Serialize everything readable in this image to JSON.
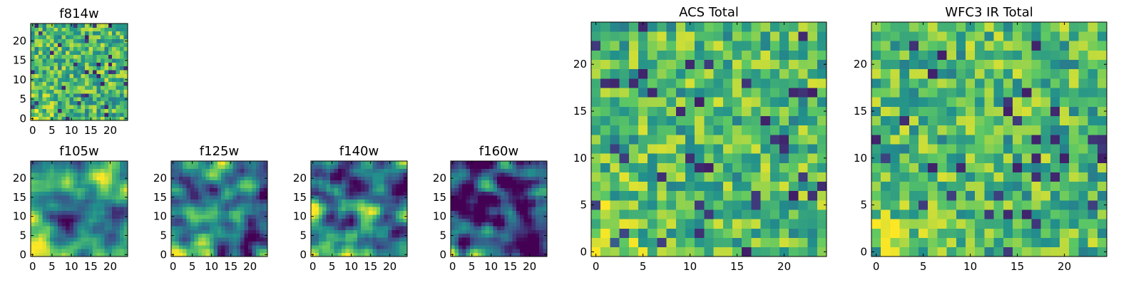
{
  "figure": {
    "colormap": "viridis",
    "colormap_stops": [
      "#440154",
      "#3b528b",
      "#21908c",
      "#5dc863",
      "#fde725"
    ]
  },
  "chart_data": [
    {
      "type": "heatmap",
      "title": "f814w",
      "xlim": [
        0,
        24
      ],
      "ylim": [
        0,
        24
      ],
      "x_ticks": [
        0,
        5,
        10,
        15,
        20
      ],
      "y_ticks": [
        0,
        5,
        10,
        15,
        20
      ],
      "grid_size": 25,
      "value_range": [
        0,
        1
      ],
      "texture": "noise",
      "smoothness": 0,
      "bias": 0.55,
      "corner": 0.25,
      "note": "25x25 pixel cutout; individual cell values not legible, approximated"
    },
    {
      "type": "heatmap",
      "title": "f105w",
      "xlim": [
        0,
        24
      ],
      "ylim": [
        0,
        24
      ],
      "x_ticks": [
        0,
        5,
        10,
        15,
        20
      ],
      "y_ticks": [
        0,
        5,
        10,
        15,
        20
      ],
      "grid_size": 25,
      "value_range": [
        0,
        1
      ],
      "texture": "smooth",
      "smoothness": 2,
      "bias": 0.5,
      "corner": 0.45
    },
    {
      "type": "heatmap",
      "title": "f125w",
      "xlim": [
        0,
        24
      ],
      "ylim": [
        0,
        24
      ],
      "x_ticks": [
        0,
        5,
        10,
        15,
        20
      ],
      "y_ticks": [
        0,
        5,
        10,
        15,
        20
      ],
      "grid_size": 25,
      "value_range": [
        0,
        1
      ],
      "texture": "smooth",
      "smoothness": 2,
      "bias": 0.45,
      "corner": 0.4
    },
    {
      "type": "heatmap",
      "title": "f140w",
      "xlim": [
        0,
        24
      ],
      "ylim": [
        0,
        24
      ],
      "x_ticks": [
        0,
        5,
        10,
        15,
        20
      ],
      "y_ticks": [
        0,
        5,
        10,
        15,
        20
      ],
      "grid_size": 25,
      "value_range": [
        0,
        1
      ],
      "texture": "smooth",
      "smoothness": 2,
      "bias": 0.48,
      "corner": 0.5
    },
    {
      "type": "heatmap",
      "title": "f160w",
      "xlim": [
        0,
        24
      ],
      "ylim": [
        0,
        24
      ],
      "x_ticks": [
        0,
        5,
        10,
        15,
        20
      ],
      "y_ticks": [
        0,
        5,
        10,
        15,
        20
      ],
      "grid_size": 25,
      "value_range": [
        0,
        1
      ],
      "texture": "smooth",
      "smoothness": 2,
      "bias": 0.25,
      "corner": 0.7
    },
    {
      "type": "heatmap",
      "title": "ACS Total",
      "xlim": [
        0,
        24
      ],
      "ylim": [
        0,
        24
      ],
      "x_ticks": [
        0,
        5,
        10,
        15,
        20
      ],
      "y_ticks": [
        0,
        5,
        10,
        15,
        20
      ],
      "grid_size": 25,
      "value_range": [
        0,
        1
      ],
      "texture": "noise",
      "smoothness": 0,
      "bias": 0.6,
      "corner": 0.3
    },
    {
      "type": "heatmap",
      "title": "WFC3 IR Total",
      "xlim": [
        0,
        24
      ],
      "ylim": [
        0,
        24
      ],
      "x_ticks": [
        0,
        5,
        10,
        15,
        20
      ],
      "y_ticks": [
        0,
        5,
        10,
        15,
        20
      ],
      "grid_size": 25,
      "value_range": [
        0,
        1
      ],
      "texture": "noise",
      "smoothness": 0,
      "bias": 0.6,
      "corner": 0.3
    }
  ]
}
